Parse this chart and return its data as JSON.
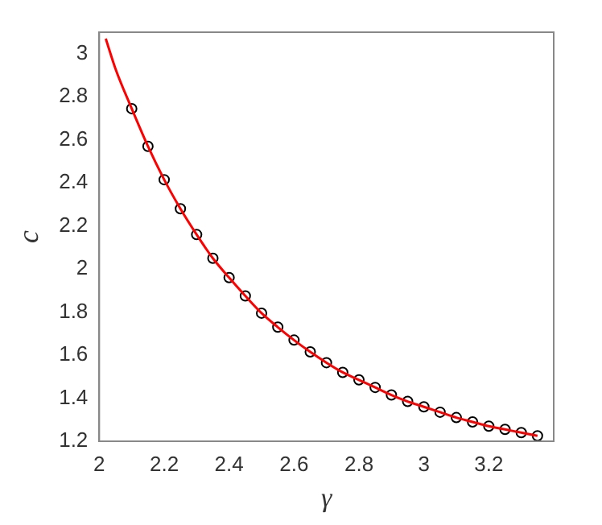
{
  "chart_data": {
    "type": "line",
    "xlabel": "γ",
    "ylabel": "c",
    "xlim": [
      2,
      3.4
    ],
    "ylim": [
      1.2,
      3.1
    ],
    "xticks": [
      2,
      2.2,
      2.4,
      2.6,
      2.8,
      3,
      3.2
    ],
    "yticks": [
      1.2,
      1.4,
      1.6,
      1.8,
      2,
      2.2,
      2.4,
      2.6,
      2.8,
      3
    ],
    "grid": false,
    "legend": false,
    "series": [
      {
        "color": "#ff0000",
        "marker": "none",
        "line_style": "solid",
        "x": [
          2.02,
          2.05,
          2.1,
          2.15,
          2.2,
          2.25,
          2.3,
          2.35,
          2.4,
          2.45,
          2.5,
          2.55,
          2.6,
          2.65,
          2.7,
          2.75,
          2.8,
          2.85,
          2.9,
          2.95,
          3,
          3.05,
          3.1,
          3.15,
          3.2,
          3.25,
          3.3,
          3.35
        ],
        "values": [
          3.07,
          2.93,
          2.745,
          2.57,
          2.415,
          2.28,
          2.16,
          2.05,
          1.96,
          1.875,
          1.795,
          1.73,
          1.67,
          1.615,
          1.565,
          1.52,
          1.485,
          1.45,
          1.415,
          1.385,
          1.36,
          1.335,
          1.31,
          1.29,
          1.27,
          1.255,
          1.24,
          1.225
        ]
      },
      {
        "type": "scatter",
        "color": "#000000",
        "marker": "circle",
        "x": [
          2.1,
          2.15,
          2.2,
          2.25,
          2.3,
          2.35,
          2.4,
          2.45,
          2.5,
          2.55,
          2.6,
          2.65,
          2.7,
          2.75,
          2.8,
          2.85,
          2.9,
          2.95,
          3,
          3.05,
          3.1,
          3.15,
          3.2,
          3.25,
          3.3,
          3.35
        ],
        "values": [
          2.745,
          2.57,
          2.415,
          2.28,
          2.16,
          2.05,
          1.96,
          1.875,
          1.795,
          1.73,
          1.67,
          1.615,
          1.565,
          1.52,
          1.485,
          1.45,
          1.415,
          1.385,
          1.36,
          1.335,
          1.31,
          1.29,
          1.27,
          1.255,
          1.24,
          1.225
        ]
      }
    ]
  }
}
